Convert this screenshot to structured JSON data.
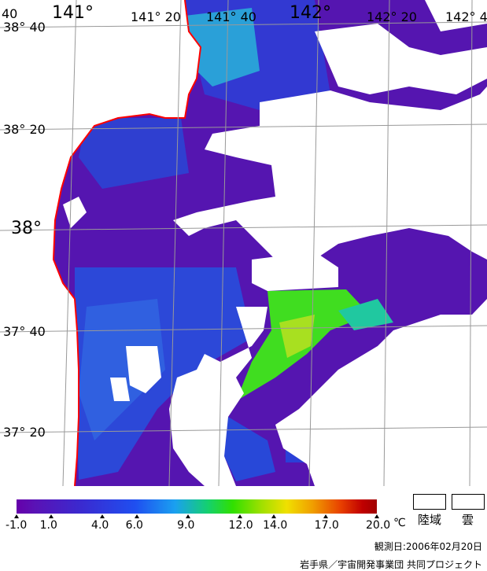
{
  "map": {
    "lon_labels": [
      "141°",
      "141° 20",
      "141° 40",
      "142°",
      "142° 20",
      "142° 4"
    ],
    "lon_label_corner": "40",
    "lat_labels": [
      "38° 40",
      "38° 20",
      "38°",
      "37° 40",
      "37° 20"
    ],
    "colors": {
      "land": "#ffffff",
      "cloud": "#ffffff",
      "coastline": "#ff0000",
      "grid": "#999999"
    }
  },
  "legend": {
    "ticks": [
      "-1.0",
      "1.0",
      "4.0",
      "6.0",
      "9.0",
      "12.0",
      "14.0",
      "17.0",
      "20.0"
    ],
    "unit": "℃",
    "land_label": "陸域",
    "cloud_label": "雲"
  },
  "footer": {
    "observation_date": "観測日:2006年02月20日",
    "credit": "岩手県／宇宙開発事業団 共同プロジェクト"
  }
}
